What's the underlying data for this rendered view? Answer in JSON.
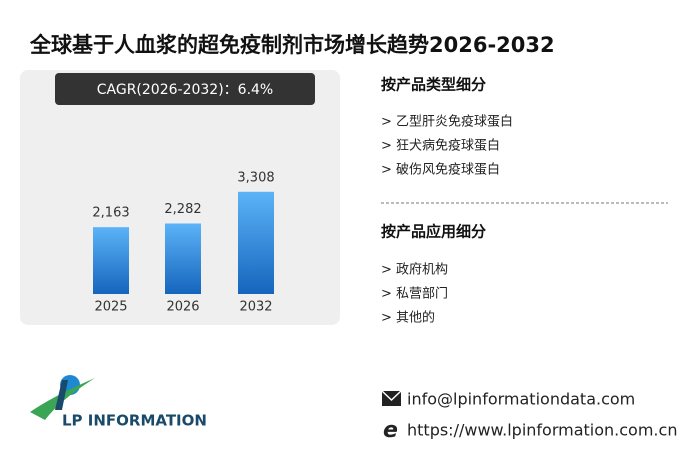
{
  "chart_data": {
    "type": "bar",
    "title": "全球基于人血浆的超免疫制剂市场增长趋势2026-2032",
    "annotation": "CAGR(2026-2032)：6.4%",
    "categories": [
      "2025",
      "2026",
      "2032"
    ],
    "values": [
      2163,
      2282,
      3308
    ],
    "value_labels": [
      "2,163",
      "2,282",
      "3,308"
    ],
    "colors": [
      "#5cb3f7",
      "#1565bd"
    ]
  },
  "segments": [
    {
      "title": "按产品类型细分",
      "items": [
        "> 乙型肝炎免疫球蛋白",
        "> 狂犬病免疫球蛋白",
        "> 破伤风免疫球蛋白"
      ]
    },
    {
      "title": "按产品应用细分",
      "items": [
        "> 政府机构",
        "> 私营部门",
        "> 其他的"
      ]
    }
  ],
  "contact": {
    "email": "info@lpinformationdata.com",
    "website": "https://www.lpinformation.com.cn"
  },
  "logo": "LP INFORMATION"
}
